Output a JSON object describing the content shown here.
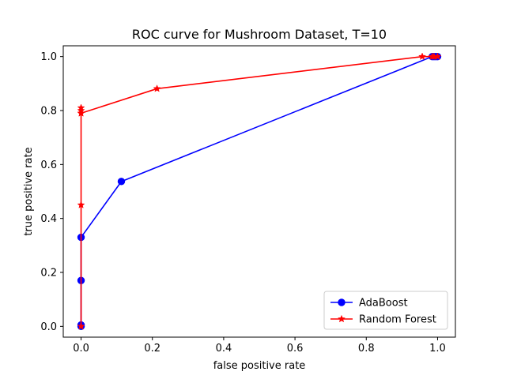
{
  "chart_data": {
    "type": "line",
    "title": "ROC curve for Mushroom Dataset, T=10",
    "xlabel": "false positive rate",
    "ylabel": "true positive rate",
    "xlim": [
      -0.05,
      1.05
    ],
    "ylim": [
      -0.04,
      1.04
    ],
    "xticks": [
      0.0,
      0.2,
      0.4,
      0.6,
      0.8,
      1.0
    ],
    "yticks": [
      0.0,
      0.2,
      0.4,
      0.6,
      0.8,
      1.0
    ],
    "xtick_labels": [
      "0.0",
      "0.2",
      "0.4",
      "0.6",
      "0.8",
      "1.0"
    ],
    "ytick_labels": [
      "0.0",
      "0.2",
      "0.4",
      "0.6",
      "0.8",
      "1.0"
    ],
    "grid": false,
    "legend_position": "bottom-right",
    "series": [
      {
        "name": "AdaBoost",
        "color": "#0000ff",
        "marker": "circle",
        "x": [
          0.0,
          0.0,
          0.0,
          0.0,
          0.113,
          0.985,
          0.99,
          0.995,
          1.0
        ],
        "y": [
          0.0,
          0.005,
          0.17,
          0.33,
          0.537,
          1.0,
          1.0,
          1.0,
          1.0
        ]
      },
      {
        "name": "Random Forest",
        "color": "#ff0000",
        "marker": "star",
        "x": [
          0.0,
          0.0,
          0.0,
          0.0,
          0.0,
          0.0,
          0.213,
          0.957,
          0.985,
          0.99,
          1.0
        ],
        "y": [
          0.0,
          0.45,
          0.79,
          0.8,
          0.81,
          0.79,
          0.881,
          1.0,
          1.0,
          1.0,
          1.0
        ]
      }
    ]
  }
}
